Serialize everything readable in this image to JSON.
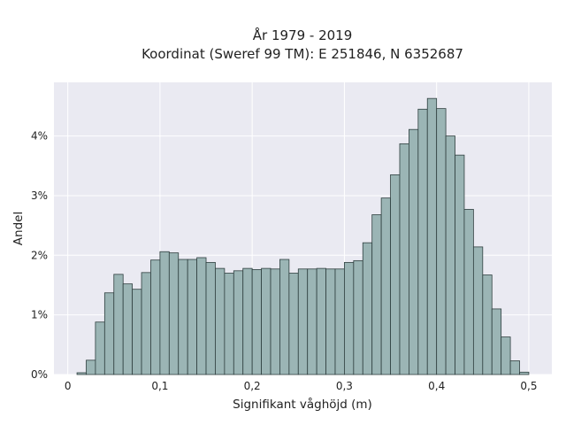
{
  "chart_data": {
    "type": "bar",
    "title": "År 1979 - 2019",
    "subtitle": "Koordinat (Sweref 99 TM): E 251846, N 6352687",
    "xlabel": "Signifikant våghöjd (m)",
    "ylabel": "Andel",
    "xlim": [
      -0.015,
      0.525
    ],
    "ylim": [
      0,
      0.049
    ],
    "x_ticks": [
      0,
      0.1,
      0.2,
      0.3,
      0.4,
      0.5
    ],
    "x_tick_labels": [
      "0",
      "0,1",
      "0,2",
      "0,3",
      "0,4",
      "0,5"
    ],
    "y_ticks": [
      0,
      0.01,
      0.02,
      0.03,
      0.04
    ],
    "y_tick_labels": [
      "0%",
      "1%",
      "2%",
      "3%",
      "4%"
    ],
    "grid": true,
    "bin_start": 0.01,
    "bin_width": 0.01,
    "values": [
      0.0003,
      0.0024,
      0.0088,
      0.0137,
      0.0168,
      0.0152,
      0.0143,
      0.0171,
      0.0192,
      0.0206,
      0.0204,
      0.0193,
      0.0193,
      0.0196,
      0.0188,
      0.0178,
      0.017,
      0.0174,
      0.0178,
      0.0176,
      0.0178,
      0.0177,
      0.0193,
      0.017,
      0.0177,
      0.0177,
      0.0178,
      0.0177,
      0.0177,
      0.0188,
      0.0191,
      0.0221,
      0.0268,
      0.0296,
      0.0335,
      0.0387,
      0.0411,
      0.0445,
      0.0463,
      0.0446,
      0.04,
      0.0368,
      0.0277,
      0.0214,
      0.0167,
      0.011,
      0.0063,
      0.0023,
      0.0004
    ],
    "colors": {
      "bar_fill": "#9bb5b5",
      "bar_edge": "#2f3f3f",
      "plot_background": "#eaeaf2",
      "grid": "#ffffff"
    }
  }
}
